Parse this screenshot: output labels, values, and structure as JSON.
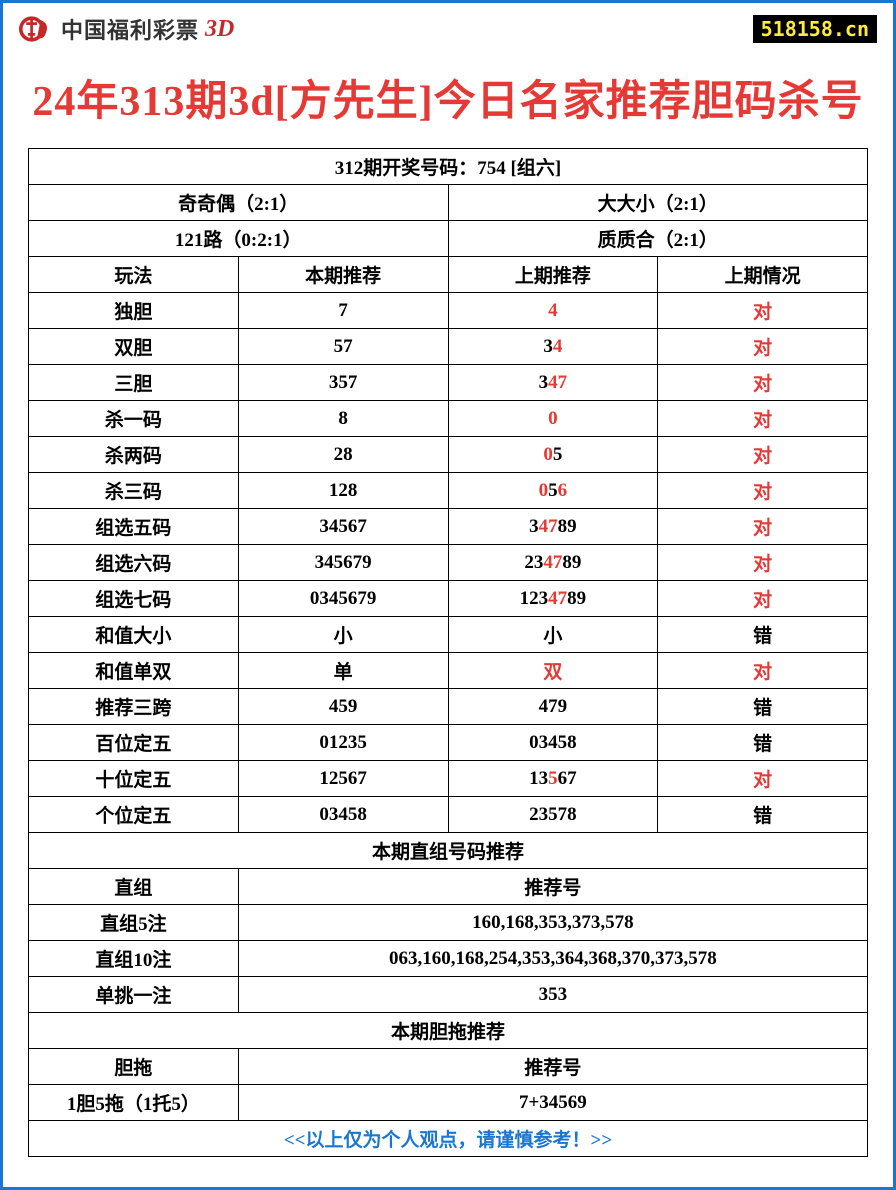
{
  "header": {
    "logo_text": "中国福利彩票",
    "logo_suffix": "3D",
    "site": "518158.cn"
  },
  "title": "24年313期3d[方先生]今日名家推荐胆码杀号",
  "draw_header": "312期开奖号码：754 [组六]",
  "summary": {
    "r1c1": "奇奇偶（2:1）",
    "r1c2": "大大小（2:1）",
    "r2c1": "121路（0:2:1）",
    "r2c2": "质质合（2:1）"
  },
  "col_headers": {
    "c1": "玩法",
    "c2": "本期推荐",
    "c3": "上期推荐",
    "c4": "上期情况"
  },
  "rows": [
    {
      "name": "独胆",
      "cur": "7",
      "prev": [
        {
          "t": "4",
          "red": true
        }
      ],
      "res": "对",
      "res_red": true
    },
    {
      "name": "双胆",
      "cur": "57",
      "prev": [
        {
          "t": "3",
          "red": false
        },
        {
          "t": "4",
          "red": true
        }
      ],
      "res": "对",
      "res_red": true
    },
    {
      "name": "三胆",
      "cur": "357",
      "prev": [
        {
          "t": "3",
          "red": false
        },
        {
          "t": "47",
          "red": true
        }
      ],
      "res": "对",
      "res_red": true
    },
    {
      "name": "杀一码",
      "cur": "8",
      "prev": [
        {
          "t": "0",
          "red": true
        }
      ],
      "res": "对",
      "res_red": true
    },
    {
      "name": "杀两码",
      "cur": "28",
      "prev": [
        {
          "t": "0",
          "red": true
        },
        {
          "t": "5",
          "red": false
        }
      ],
      "res": "对",
      "res_red": true
    },
    {
      "name": "杀三码",
      "cur": "128",
      "prev": [
        {
          "t": "0",
          "red": true
        },
        {
          "t": "5",
          "red": false
        },
        {
          "t": "6",
          "red": true
        }
      ],
      "res": "对",
      "res_red": true
    },
    {
      "name": "组选五码",
      "cur": "34567",
      "prev": [
        {
          "t": "3",
          "red": false
        },
        {
          "t": "47",
          "red": true
        },
        {
          "t": "89",
          "red": false
        }
      ],
      "res": "对",
      "res_red": true
    },
    {
      "name": "组选六码",
      "cur": "345679",
      "prev": [
        {
          "t": "23",
          "red": false
        },
        {
          "t": "47",
          "red": true
        },
        {
          "t": "89",
          "red": false
        }
      ],
      "res": "对",
      "res_red": true
    },
    {
      "name": "组选七码",
      "cur": "0345679",
      "prev": [
        {
          "t": "123",
          "red": false
        },
        {
          "t": "47",
          "red": true
        },
        {
          "t": "89",
          "red": false
        }
      ],
      "res": "对",
      "res_red": true
    },
    {
      "name": "和值大小",
      "cur": "小",
      "prev": [
        {
          "t": "小",
          "red": false
        }
      ],
      "res": "错",
      "res_red": false
    },
    {
      "name": "和值单双",
      "cur": "单",
      "prev": [
        {
          "t": "双",
          "red": true
        }
      ],
      "res": "对",
      "res_red": true
    },
    {
      "name": "推荐三跨",
      "cur": "459",
      "prev": [
        {
          "t": "479",
          "red": false
        }
      ],
      "res": "错",
      "res_red": false
    },
    {
      "name": "百位定五",
      "cur": "01235",
      "prev": [
        {
          "t": "03458",
          "red": false
        }
      ],
      "res": "错",
      "res_red": false
    },
    {
      "name": "十位定五",
      "cur": "12567",
      "prev": [
        {
          "t": "13",
          "red": false
        },
        {
          "t": "5",
          "red": true
        },
        {
          "t": "67",
          "red": false
        }
      ],
      "res": "对",
      "res_red": true
    },
    {
      "name": "个位定五",
      "cur": "03458",
      "prev": [
        {
          "t": "23578",
          "red": false
        }
      ],
      "res": "错",
      "res_red": false
    }
  ],
  "section2_header": "本期直组号码推荐",
  "section2_cols": {
    "c1": "直组",
    "c2": "推荐号"
  },
  "section2_rows": [
    {
      "name": "直组5注",
      "val": "160,168,353,373,578"
    },
    {
      "name": "直组10注",
      "val": "063,160,168,254,353,364,368,370,373,578"
    },
    {
      "name": "单挑一注",
      "val": "353"
    }
  ],
  "section3_header": "本期胆拖推荐",
  "section3_cols": {
    "c1": "胆拖",
    "c2": "推荐号"
  },
  "section3_rows": [
    {
      "name": "1胆5拖（1托5）",
      "val": "7+34569"
    }
  ],
  "footer": "<<以上仅为个人观点，请谨慎参考！>>",
  "colors": {
    "border": "#1976d2",
    "title": "#e53935",
    "red": "#e53935",
    "blue": "#1976d2",
    "badge_bg": "#000000",
    "badge_fg": "#ffeb3b"
  }
}
